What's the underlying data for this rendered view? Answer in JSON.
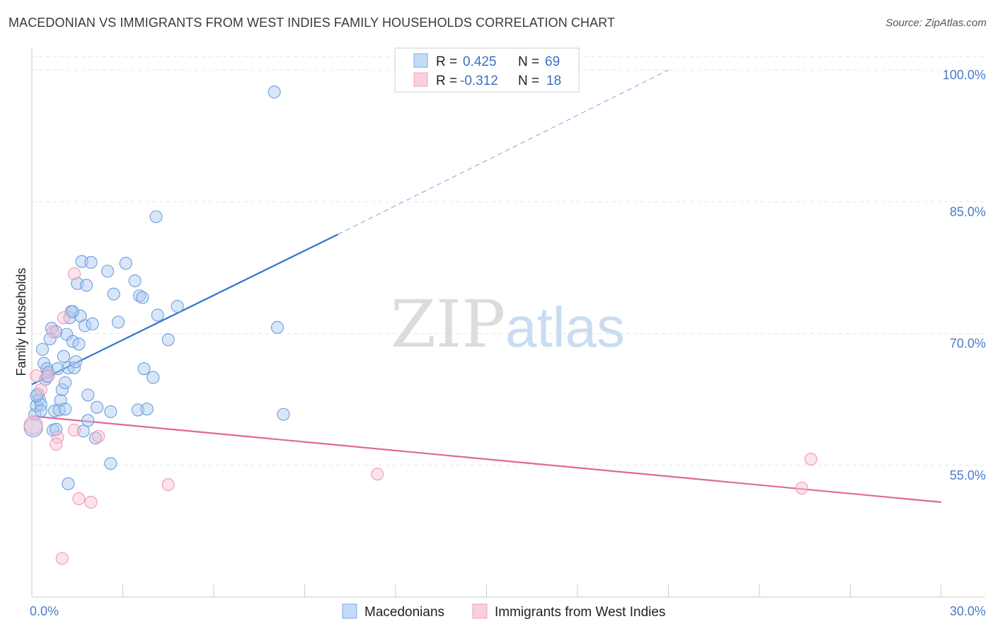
{
  "title": "MACEDONIAN VS IMMIGRANTS FROM WEST INDIES FAMILY HOUSEHOLDS CORRELATION CHART",
  "source": "Source: ZipAtlas.com",
  "watermark": {
    "zip": "ZIP",
    "atlas": "atlas"
  },
  "chart_data": {
    "type": "scatter",
    "title": "MACEDONIAN VS IMMIGRANTS FROM WEST INDIES FAMILY HOUSEHOLDS CORRELATION CHART",
    "xlabel": "",
    "ylabel": "Family Households",
    "xlim": [
      0,
      30
    ],
    "ylim": [
      40,
      102.5
    ],
    "x_ticks": [
      "0.0%",
      "30.0%"
    ],
    "y_ticks": [
      {
        "value": 100,
        "label": "100.0%"
      },
      {
        "value": 85,
        "label": "85.0%"
      },
      {
        "value": 70,
        "label": "70.0%"
      },
      {
        "value": 55,
        "label": "55.0%"
      }
    ],
    "grid": true,
    "legend_position": "top-center",
    "colors": {
      "macedonians": "#6a9fe0",
      "west_indies": "#f0a0bc",
      "blue_line": "#2f74d0",
      "pink_line": "#e06894"
    },
    "stats": [
      {
        "r_label": "R =",
        "r_value": "0.425",
        "n_label": "N =",
        "n_value": "69"
      },
      {
        "r_label": "R =",
        "r_value": "-0.312",
        "n_label": "N =",
        "n_value": "18"
      }
    ],
    "series": [
      {
        "name": "Macedonians",
        "points": [
          [
            0.05,
            59.3
          ],
          [
            0.1,
            60.8
          ],
          [
            0.15,
            61.8
          ],
          [
            0.2,
            63.1
          ],
          [
            0.25,
            62.5
          ],
          [
            0.3,
            61.9
          ],
          [
            0.35,
            68.2
          ],
          [
            0.4,
            66.6
          ],
          [
            0.45,
            64.8
          ],
          [
            0.5,
            66.0
          ],
          [
            0.55,
            65.6
          ],
          [
            0.6,
            69.4
          ],
          [
            0.65,
            70.6
          ],
          [
            0.7,
            59.0
          ],
          [
            0.75,
            61.2
          ],
          [
            0.8,
            70.2
          ],
          [
            0.85,
            66.0
          ],
          [
            0.9,
            61.3
          ],
          [
            0.95,
            62.4
          ],
          [
            1.0,
            63.6
          ],
          [
            1.05,
            67.4
          ],
          [
            1.1,
            64.4
          ],
          [
            1.15,
            69.9
          ],
          [
            1.2,
            66.1
          ],
          [
            1.25,
            71.8
          ],
          [
            1.3,
            72.5
          ],
          [
            1.35,
            69.1
          ],
          [
            1.4,
            66.1
          ],
          [
            1.45,
            66.8
          ],
          [
            1.5,
            75.7
          ],
          [
            1.55,
            68.8
          ],
          [
            1.6,
            72.0
          ],
          [
            1.65,
            78.2
          ],
          [
            1.7,
            58.9
          ],
          [
            1.75,
            70.9
          ],
          [
            1.8,
            75.5
          ],
          [
            1.85,
            63.0
          ],
          [
            1.95,
            78.1
          ],
          [
            2.0,
            71.1
          ],
          [
            2.1,
            58.1
          ],
          [
            2.15,
            61.6
          ],
          [
            2.5,
            77.1
          ],
          [
            2.6,
            61.1
          ],
          [
            2.7,
            74.5
          ],
          [
            2.85,
            71.3
          ],
          [
            3.1,
            78.0
          ],
          [
            3.4,
            76.0
          ],
          [
            3.5,
            61.3
          ],
          [
            3.55,
            74.3
          ],
          [
            3.65,
            74.1
          ],
          [
            3.7,
            66.0
          ],
          [
            3.8,
            61.4
          ],
          [
            4.0,
            65.0
          ],
          [
            4.15,
            72.1
          ],
          [
            4.1,
            83.3
          ],
          [
            4.5,
            69.3
          ],
          [
            4.8,
            73.1
          ],
          [
            8.0,
            97.5
          ],
          [
            8.1,
            70.7
          ],
          [
            8.3,
            60.8
          ],
          [
            1.2,
            52.9
          ],
          [
            2.6,
            55.2
          ],
          [
            0.15,
            62.9
          ],
          [
            0.3,
            61.2
          ],
          [
            0.5,
            65.1
          ],
          [
            0.8,
            59.1
          ],
          [
            1.1,
            61.4
          ],
          [
            1.35,
            72.5
          ],
          [
            1.85,
            60.1
          ]
        ]
      },
      {
        "name": "Immigrants from West Indies",
        "points": [
          [
            0.05,
            59.6
          ],
          [
            0.15,
            65.2
          ],
          [
            0.3,
            63.6
          ],
          [
            0.55,
            65.2
          ],
          [
            0.7,
            70.2
          ],
          [
            0.85,
            58.2
          ],
          [
            0.8,
            57.4
          ],
          [
            1.0,
            44.4
          ],
          [
            1.05,
            71.8
          ],
          [
            1.4,
            59.0
          ],
          [
            1.4,
            76.8
          ],
          [
            1.55,
            51.2
          ],
          [
            1.95,
            50.8
          ],
          [
            2.2,
            58.3
          ],
          [
            4.5,
            52.8
          ],
          [
            11.4,
            54.0
          ],
          [
            25.4,
            52.4
          ],
          [
            25.7,
            55.7
          ]
        ]
      }
    ],
    "trend_lines": [
      {
        "series": "Macedonians",
        "x0": 0,
        "y0": 64.2,
        "x1": 10.1,
        "y1": 81.3,
        "dash_to": [
          21.0,
          100.0
        ]
      },
      {
        "series": "Immigrants from West Indies",
        "x0": 0,
        "y0": 60.6,
        "x1": 30,
        "y1": 50.8
      }
    ]
  }
}
